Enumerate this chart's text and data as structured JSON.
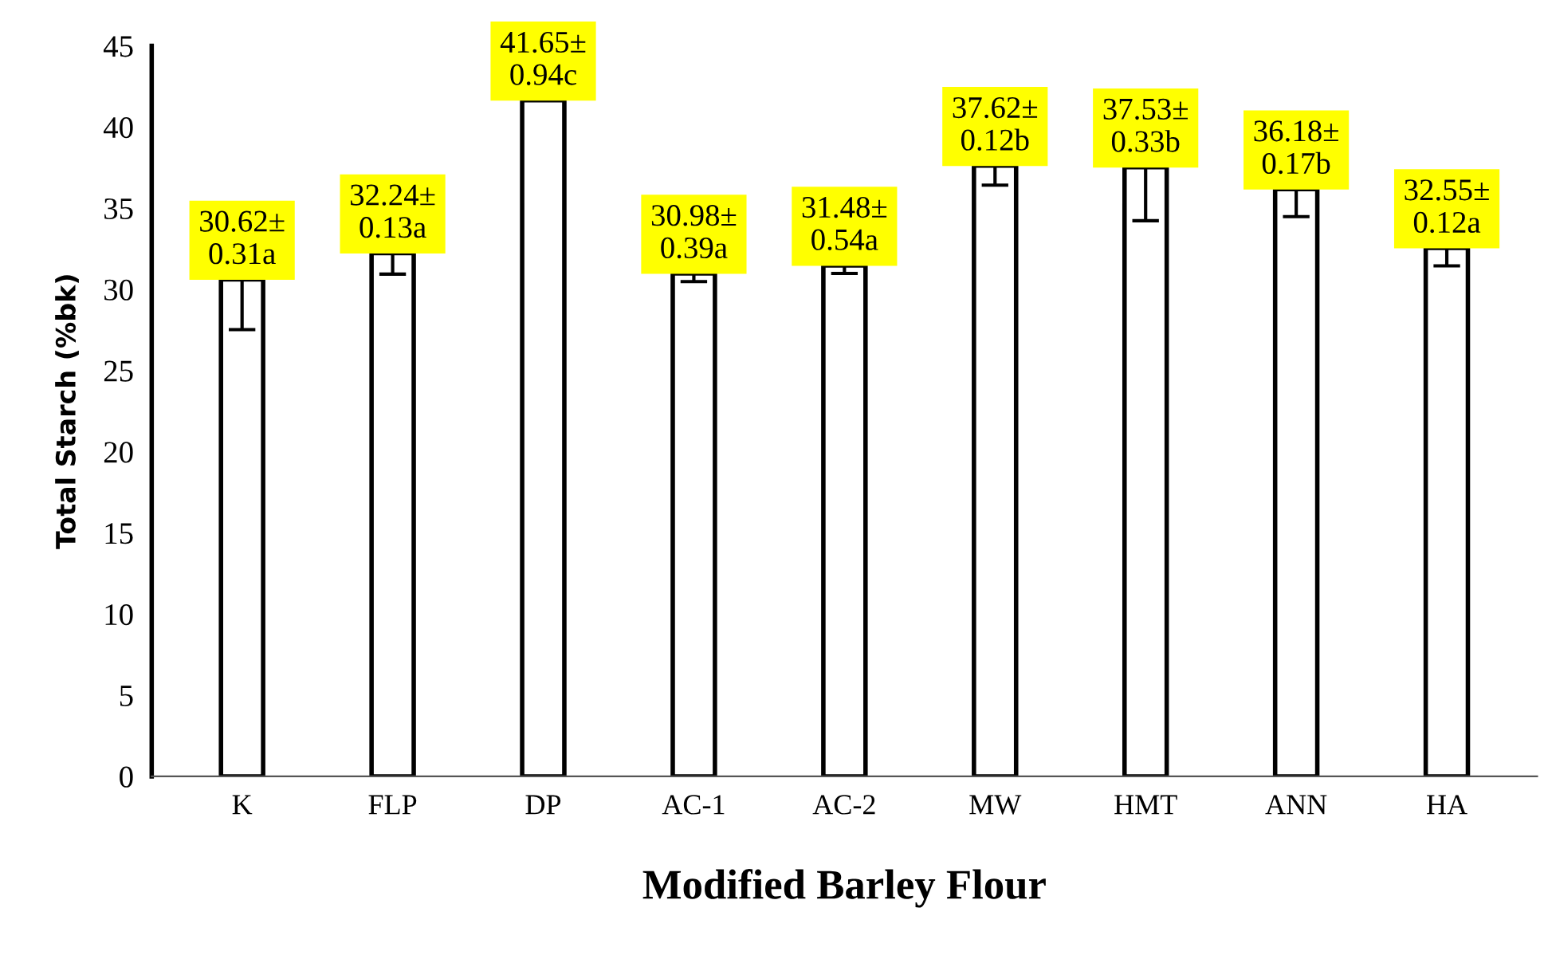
{
  "chart_data": {
    "type": "bar",
    "xlabel": "Modified Barley Flour",
    "ylabel": "Total Starch (%bk)",
    "categories": [
      "K",
      "FLP",
      "DP",
      "AC-1",
      "AC-2",
      "MW",
      "HMT",
      "ANN",
      "HA"
    ],
    "series": [
      {
        "color": "#ffffff",
        "values": [
          30.62,
          32.24,
          41.65,
          30.98,
          31.48,
          37.62,
          37.53,
          36.18,
          32.55
        ],
        "errors": [
          3.1,
          1.3,
          null,
          0.5,
          0.5,
          1.2,
          3.3,
          1.7,
          1.1
        ],
        "value_labels": [
          "30.62±\n0.31a",
          "32.24±\n0.13a",
          "41.65±\n0.94c",
          "30.98±\n0.39a",
          "31.48±\n0.54a",
          "37.62±\n0.12b",
          "37.53±\n0.33b",
          "36.18±\n0.17b",
          "32.55±\n0.12a"
        ]
      }
    ],
    "ylim": [
      0,
      45
    ],
    "yticks": [
      0,
      5,
      10,
      15,
      20,
      25,
      30,
      35,
      40,
      45
    ],
    "grid": false,
    "legend": false
  }
}
